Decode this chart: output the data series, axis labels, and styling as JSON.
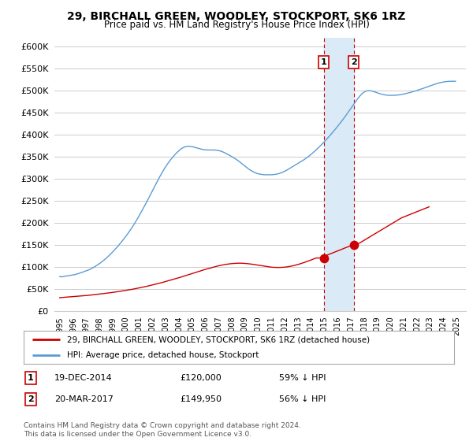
{
  "title": "29, BIRCHALL GREEN, WOODLEY, STOCKPORT, SK6 1RZ",
  "subtitle": "Price paid vs. HM Land Registry's House Price Index (HPI)",
  "legend_line1": "29, BIRCHALL GREEN, WOODLEY, STOCKPORT, SK6 1RZ (detached house)",
  "legend_line2": "HPI: Average price, detached house, Stockport",
  "footnote": "Contains HM Land Registry data © Crown copyright and database right 2024.\nThis data is licensed under the Open Government Licence v3.0.",
  "point1_label": "1",
  "point1_date": "19-DEC-2014",
  "point1_price": "£120,000",
  "point1_pct": "59% ↓ HPI",
  "point2_label": "2",
  "point2_date": "20-MAR-2017",
  "point2_price": "£149,950",
  "point2_pct": "56% ↓ HPI",
  "point1_year": 2014.96,
  "point1_value": 120000,
  "point2_year": 2017.22,
  "point2_value": 149950,
  "ylim": [
    0,
    620000
  ],
  "yticks": [
    0,
    50000,
    100000,
    150000,
    200000,
    250000,
    300000,
    350000,
    400000,
    450000,
    500000,
    550000,
    600000
  ],
  "red_color": "#cc0000",
  "blue_color": "#5b9bd5",
  "shade_color": "#daeaf6",
  "grid_color": "#cccccc",
  "background_color": "#ffffff",
  "hpi_monthly": [
    78000,
    77500,
    77200,
    77800,
    78300,
    78900,
    79100,
    79400,
    79800,
    80100,
    80500,
    80900,
    81300,
    81800,
    82400,
    83100,
    83900,
    84700,
    85500,
    86400,
    87200,
    88100,
    89000,
    89900,
    90800,
    91700,
    92700,
    93800,
    95000,
    96300,
    97700,
    99100,
    100600,
    102200,
    103800,
    105500,
    107200,
    109000,
    110900,
    112800,
    114800,
    116900,
    119100,
    121400,
    123700,
    126100,
    128500,
    131000,
    133600,
    136200,
    138900,
    141700,
    144500,
    147400,
    150300,
    153300,
    156400,
    159500,
    162700,
    165900,
    169200,
    172600,
    176000,
    179500,
    183100,
    186800,
    190600,
    194500,
    198500,
    202600,
    206800,
    211100,
    215500,
    219900,
    224400,
    228900,
    233500,
    238100,
    242800,
    247500,
    252300,
    257100,
    262000,
    266900,
    271800,
    276700,
    281600,
    286500,
    291300,
    296100,
    300800,
    305400,
    309900,
    314300,
    318500,
    322600,
    326600,
    330400,
    334000,
    337500,
    340900,
    344100,
    347200,
    350200,
    353000,
    355700,
    358300,
    360700,
    363000,
    365200,
    367200,
    368900,
    370300,
    371400,
    372200,
    372800,
    373100,
    373200,
    373100,
    372800,
    372400,
    371900,
    371300,
    370600,
    369900,
    369200,
    368500,
    367800,
    367100,
    366500,
    366000,
    365600,
    365300,
    365100,
    365000,
    364900,
    364900,
    364900,
    364900,
    364900,
    364800,
    364700,
    364400,
    364100,
    363600,
    363000,
    362300,
    361500,
    360500,
    359500,
    358300,
    357000,
    355700,
    354300,
    352900,
    351500,
    350100,
    348600,
    347100,
    345500,
    343800,
    342100,
    340300,
    338400,
    336400,
    334400,
    332400,
    330300,
    328300,
    326300,
    324400,
    322500,
    320700,
    319000,
    317500,
    316000,
    314700,
    313600,
    312600,
    311700,
    311000,
    310400,
    309900,
    309500,
    309200,
    309000,
    308800,
    308700,
    308700,
    308600,
    308600,
    308700,
    308800,
    308900,
    309100,
    309400,
    309800,
    310300,
    310900,
    311600,
    312400,
    313300,
    314300,
    315400,
    316600,
    317900,
    319300,
    320700,
    322200,
    323700,
    325200,
    326700,
    328200,
    329700,
    331200,
    332700,
    334200,
    335700,
    337200,
    338700,
    340300,
    341900,
    343600,
    345300,
    347100,
    349000,
    350900,
    352900,
    355000,
    357100,
    359300,
    361500,
    363800,
    366100,
    368500,
    370900,
    373400,
    375900,
    378400,
    381000,
    383600,
    386300,
    389000,
    391700,
    394500,
    397300,
    400200,
    403100,
    406100,
    409100,
    412100,
    415200,
    418300,
    421400,
    424600,
    427800,
    431100,
    434400,
    437800,
    441200,
    444700,
    448200,
    451700,
    455300,
    458900,
    462500,
    466100,
    469700,
    473300,
    476800,
    480200,
    483500,
    486600,
    489500,
    492000,
    494200,
    496000,
    497400,
    498400,
    499000,
    499300,
    499300,
    499100,
    498600,
    498000,
    497200,
    496400,
    495500,
    494600,
    493700,
    492900,
    492100,
    491400,
    490800,
    490300,
    489900,
    489500,
    489200,
    489000,
    488900,
    488800,
    488800,
    488800,
    488900,
    489000,
    489200,
    489400,
    489700,
    490000,
    490400,
    490800,
    491300,
    491800,
    492300,
    492900,
    493500,
    494100,
    494700,
    495400,
    496100,
    496800,
    497500,
    498300,
    499100,
    499900,
    500700,
    501500,
    502400,
    503200,
    504100,
    505000,
    505900,
    506800,
    507700,
    508600,
    509500,
    510400,
    511300,
    512200,
    513100,
    513900,
    514700,
    515500,
    516200,
    516900,
    517500,
    518000,
    518500,
    519000,
    519400,
    519800,
    520100,
    520400,
    520600,
    520700,
    520700,
    520700,
    520700,
    520700,
    520700
  ],
  "price_paid_monthly": [
    30000,
    30200,
    30400,
    30600,
    30800,
    31000,
    31200,
    31400,
    31600,
    31800,
    32000,
    32200,
    32400,
    32600,
    32700,
    32900,
    33100,
    33300,
    33500,
    33700,
    33900,
    34100,
    34400,
    34600,
    34900,
    35100,
    35400,
    35600,
    35900,
    36200,
    36400,
    36700,
    37000,
    37300,
    37600,
    37900,
    38200,
    38500,
    38800,
    39100,
    39400,
    39700,
    40000,
    40300,
    40600,
    41000,
    41300,
    41600,
    42000,
    42300,
    42700,
    43000,
    43400,
    43800,
    44100,
    44500,
    44900,
    45300,
    45700,
    46100,
    46500,
    46900,
    47300,
    47800,
    48200,
    48700,
    49100,
    49600,
    50100,
    50500,
    51000,
    51500,
    52000,
    52500,
    53100,
    53600,
    54100,
    54700,
    55200,
    55800,
    56400,
    56900,
    57500,
    58100,
    58700,
    59300,
    59900,
    60600,
    61200,
    61800,
    62500,
    63100,
    63800,
    64500,
    65100,
    65800,
    66500,
    67200,
    67900,
    68600,
    69300,
    70000,
    70700,
    71500,
    72200,
    72900,
    73700,
    74400,
    75200,
    75900,
    76700,
    77500,
    78200,
    79000,
    79800,
    80600,
    81400,
    82200,
    83000,
    83800,
    84600,
    85400,
    86200,
    87000,
    87800,
    88600,
    89400,
    90200,
    91000,
    91800,
    92500,
    93300,
    94100,
    94800,
    95600,
    96300,
    97000,
    97700,
    98400,
    99100,
    99700,
    100400,
    101000,
    101600,
    102200,
    102700,
    103300,
    103800,
    104300,
    104800,
    105200,
    105600,
    106000,
    106400,
    106700,
    107000,
    107300,
    107500,
    107700,
    107900,
    108000,
    108100,
    108200,
    108200,
    108200,
    108100,
    108000,
    107900,
    107700,
    107500,
    107300,
    107000,
    106700,
    106400,
    106100,
    105700,
    105300,
    104900,
    104500,
    104100,
    103700,
    103300,
    102800,
    102400,
    102000,
    101600,
    101200,
    100800,
    100400,
    100100,
    99800,
    99500,
    99200,
    99000,
    98800,
    98700,
    98600,
    98500,
    98500,
    98500,
    98600,
    98700,
    98800,
    99000,
    99200,
    99500,
    99800,
    100200,
    100600,
    101000,
    101500,
    102000,
    102600,
    103200,
    103800,
    104500,
    105200,
    105900,
    106700,
    107500,
    108300,
    109100,
    110000,
    110900,
    111800,
    112700,
    113600,
    114600,
    115500,
    116500,
    117500,
    118500,
    119500,
    120000,
    120000,
    120000,
    120000,
    121000,
    122000,
    123000,
    124000,
    125000,
    126000,
    127000,
    128000,
    129000,
    130000,
    131000,
    132000,
    133000,
    134000,
    135000,
    136000,
    137000,
    138000,
    139000,
    140000,
    141000,
    142000,
    143000,
    144000,
    145000,
    146000,
    147000,
    148000,
    149000,
    149950,
    149950,
    150500,
    151000,
    152000,
    153000,
    154000,
    155500,
    157000,
    158500,
    160000,
    161500,
    163000,
    164500,
    166000,
    167500,
    169000,
    170500,
    172000,
    173500,
    175000,
    176500,
    178000,
    179500,
    181000,
    182500,
    184000,
    185500,
    187000,
    188500,
    190000,
    191500,
    193000,
    194500,
    196000,
    197500,
    199000,
    200500,
    202000,
    203500,
    205000,
    206500,
    208000,
    209500,
    211000,
    212000,
    213000,
    214000,
    215000,
    216000,
    217000,
    218000,
    219000,
    220000,
    221000,
    222000,
    223000,
    224000,
    225000,
    226000,
    227000,
    228000,
    229000,
    230000,
    231000,
    232000,
    233000,
    234000,
    235000,
    236000
  ],
  "start_year": 1995.0,
  "month_step": 0.08333
}
